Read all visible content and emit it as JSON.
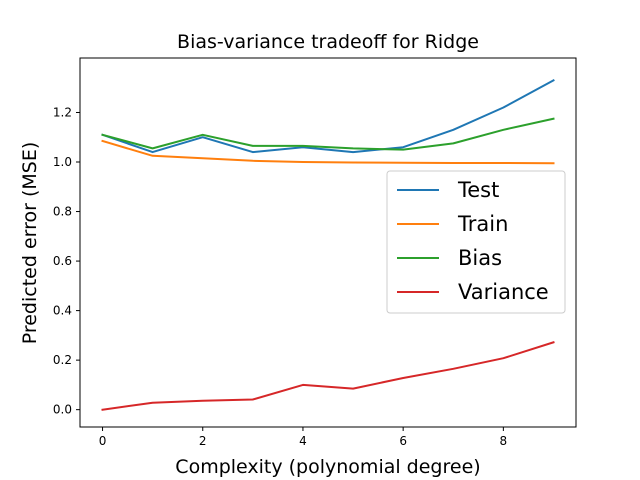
{
  "chart_data": {
    "type": "line",
    "title": "Bias-variance tradeoff for Ridge",
    "xlabel": "Complexity (polynomial degree)",
    "ylabel": "Predicted error (MSE)",
    "xlim": [
      -0.45,
      9.45
    ],
    "ylim": [
      -0.07,
      1.42
    ],
    "xticks": [
      0,
      2,
      4,
      6,
      8
    ],
    "yticks": [
      0.0,
      0.2,
      0.4,
      0.6,
      0.8,
      1.0,
      1.2
    ],
    "xtick_labels": [
      "0",
      "2",
      "4",
      "6",
      "8"
    ],
    "ytick_labels": [
      "0.0",
      "0.2",
      "0.4",
      "0.6",
      "0.8",
      "1.0",
      "1.2"
    ],
    "legend_position": "center-right",
    "grid": false,
    "x": [
      0,
      1,
      2,
      3,
      4,
      5,
      6,
      7,
      8,
      9
    ],
    "series": [
      {
        "name": "Test",
        "color": "#1f77b4",
        "values": [
          1.11,
          1.04,
          1.1,
          1.04,
          1.06,
          1.04,
          1.06,
          1.13,
          1.22,
          1.33
        ]
      },
      {
        "name": "Train",
        "color": "#ff7f0e",
        "values": [
          1.085,
          1.025,
          1.015,
          1.005,
          1.0,
          0.998,
          0.997,
          0.996,
          0.996,
          0.995
        ]
      },
      {
        "name": "Bias",
        "color": "#2ca02c",
        "values": [
          1.11,
          1.055,
          1.11,
          1.065,
          1.065,
          1.055,
          1.05,
          1.075,
          1.13,
          1.175
        ]
      },
      {
        "name": "Variance",
        "color": "#d62728",
        "values": [
          0.0,
          0.028,
          0.036,
          0.041,
          0.1,
          0.085,
          0.128,
          0.165,
          0.208,
          0.272
        ]
      }
    ]
  }
}
